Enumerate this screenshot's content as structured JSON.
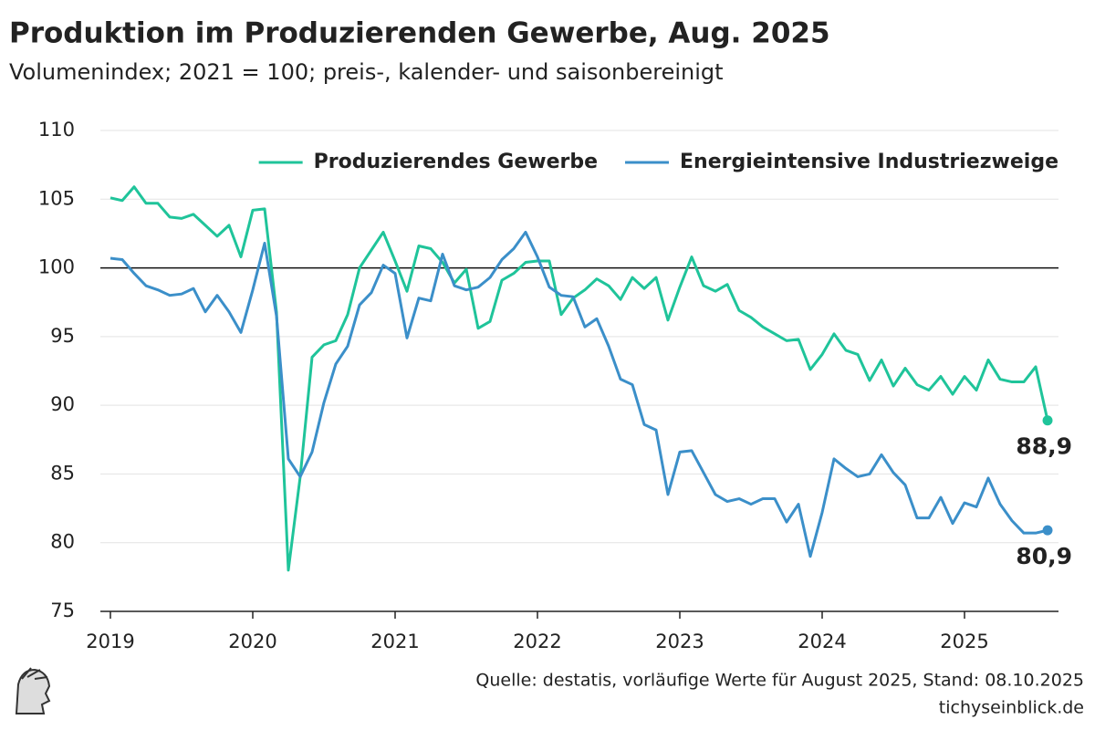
{
  "chart_data": {
    "type": "line",
    "title": "Produktion im Produzierenden Gewerbe, Aug. 2025",
    "subtitle": "Volumenindex; 2021 = 100; preis-, kalender- und saisonbereinigt",
    "source": "Quelle: destatis, vorläufige Werte für August 2025, Stand: 08.10.2025",
    "site": "tichyseinblick.de",
    "categories": [
      "2019",
      null,
      null,
      null,
      null,
      null,
      null,
      null,
      null,
      null,
      null,
      null,
      "2020",
      null,
      null,
      null,
      null,
      null,
      null,
      null,
      null,
      null,
      null,
      null,
      "2021",
      null,
      null,
      null,
      null,
      null,
      null,
      null,
      null,
      null,
      null,
      null,
      "2022",
      null,
      null,
      null,
      null,
      null,
      null,
      null,
      null,
      null,
      null,
      null,
      "2023",
      null,
      null,
      null,
      null,
      null,
      null,
      null,
      null,
      null,
      null,
      null,
      "2024",
      null,
      null,
      null,
      null,
      null,
      null,
      null,
      null,
      null,
      null,
      null,
      "2025",
      null,
      null,
      null,
      null,
      null,
      null,
      null
    ],
    "series": [
      {
        "name": "Produzierendes Gewerbe",
        "color": "#1fc49a",
        "values": [
          105.1,
          104.9,
          105.9,
          104.7,
          104.7,
          103.7,
          103.6,
          103.9,
          103.1,
          102.3,
          103.1,
          100.8,
          104.2,
          104.3,
          96.8,
          78.0,
          84.8,
          93.5,
          94.4,
          94.7,
          96.6,
          100.0,
          101.3,
          102.6,
          100.5,
          98.3,
          101.6,
          101.4,
          100.4,
          98.9,
          99.9,
          95.6,
          96.1,
          99.1,
          99.6,
          100.4,
          100.5,
          100.5,
          96.6,
          97.8,
          98.4,
          99.2,
          98.7,
          97.7,
          99.3,
          98.5,
          99.3,
          96.2,
          98.6,
          100.8,
          98.7,
          98.3,
          98.8,
          96.9,
          96.4,
          95.7,
          95.2,
          94.7,
          94.8,
          92.6,
          93.7,
          95.2,
          94.0,
          93.7,
          91.8,
          93.3,
          91.4,
          92.7,
          91.5,
          91.1,
          92.1,
          90.8,
          92.1,
          91.1,
          93.3,
          91.9,
          91.7,
          91.7,
          92.8,
          88.9
        ],
        "value_labels": [
          null,
          null,
          null,
          null,
          null,
          null,
          null,
          null,
          null,
          null,
          null,
          null,
          null,
          null,
          null,
          null,
          null,
          null,
          null,
          null,
          null,
          null,
          null,
          null,
          null,
          null,
          null,
          null,
          null,
          null,
          null,
          null,
          null,
          null,
          null,
          null,
          null,
          null,
          null,
          null,
          null,
          null,
          null,
          null,
          null,
          null,
          null,
          null,
          null,
          null,
          null,
          null,
          null,
          null,
          null,
          null,
          null,
          null,
          null,
          null,
          null,
          null,
          null,
          null,
          null,
          null,
          null,
          null,
          null,
          null,
          null,
          null,
          null,
          null,
          null,
          null,
          null,
          null,
          null,
          "88,9"
        ]
      },
      {
        "name": "Energieintensive Industriezweige",
        "color": "#3b8fc9",
        "values": [
          100.7,
          100.6,
          99.6,
          98.7,
          98.4,
          98.0,
          98.1,
          98.5,
          96.8,
          98.0,
          96.8,
          95.3,
          98.4,
          101.8,
          96.5,
          86.1,
          84.8,
          86.6,
          90.2,
          93.0,
          94.3,
          97.3,
          98.2,
          100.2,
          99.6,
          94.9,
          97.8,
          97.6,
          101.0,
          98.7,
          98.4,
          98.6,
          99.3,
          100.6,
          101.4,
          102.6,
          100.8,
          98.6,
          98.0,
          97.9,
          95.7,
          96.3,
          94.3,
          91.9,
          91.5,
          88.6,
          88.2,
          83.5,
          86.6,
          86.7,
          85.1,
          83.5,
          83.0,
          83.2,
          82.8,
          83.2,
          83.2,
          81.5,
          82.8,
          79.0,
          82.2,
          86.1,
          85.4,
          84.8,
          85.0,
          86.4,
          85.1,
          84.2,
          81.8,
          81.8,
          83.3,
          81.4,
          82.9,
          82.6,
          84.7,
          82.8,
          81.6,
          80.7,
          80.7,
          80.9
        ],
        "value_labels": [
          null,
          null,
          null,
          null,
          null,
          null,
          null,
          null,
          null,
          null,
          null,
          null,
          null,
          null,
          null,
          null,
          null,
          null,
          null,
          null,
          null,
          null,
          null,
          null,
          null,
          null,
          null,
          null,
          null,
          null,
          null,
          null,
          null,
          null,
          null,
          null,
          null,
          null,
          null,
          null,
          null,
          null,
          null,
          null,
          null,
          null,
          null,
          null,
          null,
          null,
          null,
          null,
          null,
          null,
          null,
          null,
          null,
          null,
          null,
          null,
          null,
          null,
          null,
          null,
          null,
          null,
          null,
          null,
          null,
          null,
          null,
          null,
          null,
          null,
          null,
          null,
          null,
          null,
          null,
          "80,9"
        ]
      }
    ],
    "ylim": [
      75,
      110
    ],
    "yticks": [
      75,
      80,
      85,
      90,
      95,
      100,
      105,
      110
    ],
    "reference_line": 100,
    "grid": true,
    "legend": "upper right"
  }
}
